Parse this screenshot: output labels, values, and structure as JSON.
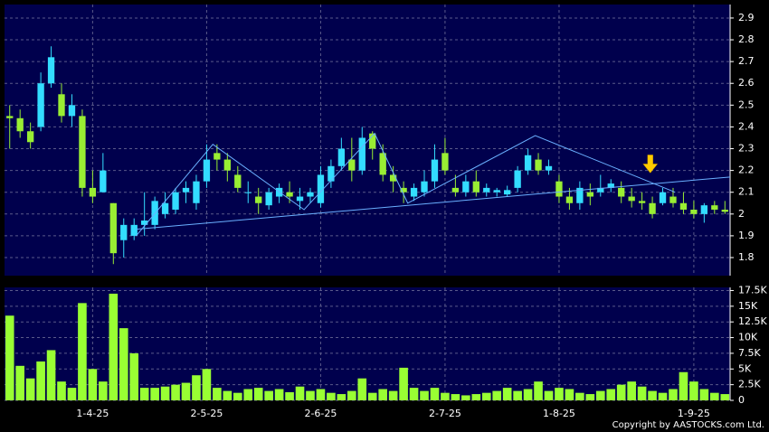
{
  "chart_data": [
    {
      "type": "candlestick",
      "up_color": "#33ddff",
      "down_color": "#99ee33",
      "background": "#00004d",
      "grid": true,
      "open": [
        2.45,
        2.44,
        2.38,
        2.4,
        2.6,
        2.55,
        2.45,
        2.45,
        2.12,
        2.1,
        2.05,
        1.88,
        1.9,
        1.95,
        1.95,
        2.0,
        2.02,
        2.1,
        2.05,
        2.15,
        2.28,
        2.25,
        2.18,
        2.1,
        2.08,
        2.04,
        2.08,
        2.1,
        2.06,
        2.08,
        2.05,
        2.15,
        2.22,
        2.25,
        2.2,
        2.37,
        2.28,
        2.18,
        2.12,
        2.08,
        2.1,
        2.15,
        2.28,
        2.12,
        2.1,
        2.15,
        2.1,
        2.1,
        2.09,
        2.12,
        2.2,
        2.25,
        2.2,
        2.15,
        2.08,
        2.05,
        2.1,
        2.1,
        2.12,
        2.12,
        2.08,
        2.06,
        2.05,
        2.05,
        2.08,
        2.05,
        2.02,
        2.0,
        2.04,
        2.02
      ],
      "high": [
        2.5,
        2.48,
        2.42,
        2.65,
        2.77,
        2.6,
        2.55,
        2.48,
        2.2,
        2.28,
        2.05,
        1.98,
        1.98,
        2.1,
        2.08,
        2.1,
        2.12,
        2.15,
        2.18,
        2.32,
        2.32,
        2.28,
        2.22,
        2.15,
        2.12,
        2.12,
        2.14,
        2.15,
        2.12,
        2.12,
        2.22,
        2.25,
        2.35,
        2.35,
        2.4,
        2.38,
        2.32,
        2.22,
        2.15,
        2.14,
        2.2,
        2.32,
        2.35,
        2.18,
        2.18,
        2.2,
        2.14,
        2.12,
        2.13,
        2.22,
        2.3,
        2.28,
        2.25,
        2.18,
        2.12,
        2.15,
        2.14,
        2.18,
        2.16,
        2.15,
        2.12,
        2.1,
        2.08,
        2.12,
        2.12,
        2.1,
        2.06,
        2.05,
        2.06,
        2.06
      ],
      "low": [
        2.3,
        2.35,
        2.3,
        2.38,
        2.58,
        2.42,
        2.4,
        2.08,
        2.05,
        2.1,
        1.77,
        1.8,
        1.88,
        1.9,
        1.93,
        1.98,
        2.0,
        2.05,
        2.02,
        2.12,
        2.2,
        2.15,
        2.1,
        2.05,
        2.0,
        2.02,
        2.05,
        2.05,
        2.02,
        2.05,
        2.03,
        2.12,
        2.2,
        2.15,
        2.18,
        2.25,
        2.15,
        2.1,
        2.05,
        2.06,
        2.08,
        2.12,
        2.18,
        2.08,
        2.08,
        2.08,
        2.08,
        2.08,
        2.08,
        2.1,
        2.18,
        2.18,
        2.18,
        2.05,
        2.02,
        2.02,
        2.04,
        2.08,
        2.1,
        2.05,
        2.03,
        2.02,
        1.98,
        2.04,
        2.03,
        2.0,
        1.98,
        1.96,
        2.0,
        2.0
      ],
      "close": [
        2.44,
        2.38,
        2.33,
        2.6,
        2.72,
        2.45,
        2.5,
        2.12,
        2.08,
        2.2,
        1.82,
        1.95,
        1.95,
        1.97,
        2.06,
        2.05,
        2.1,
        2.12,
        2.15,
        2.25,
        2.25,
        2.2,
        2.12,
        2.1,
        2.05,
        2.1,
        2.12,
        2.08,
        2.08,
        2.1,
        2.18,
        2.22,
        2.3,
        2.2,
        2.35,
        2.3,
        2.18,
        2.15,
        2.1,
        2.12,
        2.15,
        2.25,
        2.2,
        2.1,
        2.15,
        2.1,
        2.12,
        2.11,
        2.11,
        2.2,
        2.27,
        2.2,
        2.22,
        2.08,
        2.05,
        2.12,
        2.08,
        2.12,
        2.14,
        2.08,
        2.06,
        2.05,
        2.0,
        2.1,
        2.05,
        2.02,
        2.0,
        2.04,
        2.02,
        2.01
      ],
      "xlim": [
        -0.5,
        69.5
      ],
      "ylim": [
        1.717,
        2.962
      ],
      "yticks": [
        1.8,
        1.9,
        2,
        2.1,
        2.2,
        2.3,
        2.4,
        2.5,
        2.6,
        2.7,
        2.8,
        2.9
      ],
      "trend_lines": [
        {
          "color": "#6ab0ff",
          "x": [
            12.2,
            19.6,
            28.4,
            35.2,
            38.4,
            50.7,
            64.2
          ],
          "y": [
            1.9,
            2.32,
            2.02,
            2.37,
            2.05,
            2.36,
            2.1
          ]
        },
        {
          "color": "#6ab0ff",
          "x": [
            12.2,
            69.5
          ],
          "y": [
            1.93,
            2.17
          ]
        }
      ],
      "arrow": {
        "x": 61.8,
        "y": 2.18,
        "color": "#ffcc00"
      }
    },
    {
      "type": "bar",
      "color": "#99ff33",
      "background": "#00004d",
      "grid": true,
      "values": [
        13500,
        5500,
        3500,
        6200,
        8000,
        3000,
        2000,
        15500,
        5000,
        3000,
        17000,
        11500,
        7500,
        2000,
        2000,
        2200,
        2500,
        2800,
        4000,
        5000,
        2000,
        1500,
        1200,
        1800,
        2000,
        1500,
        1800,
        1300,
        2200,
        1500,
        1800,
        1200,
        1000,
        1500,
        3500,
        1200,
        1800,
        1500,
        5200,
        2000,
        1500,
        2000,
        1200,
        1000,
        800,
        1000,
        1200,
        1500,
        2000,
        1500,
        1800,
        3000,
        1500,
        2000,
        1800,
        1200,
        1000,
        1500,
        1800,
        2500,
        3000,
        2200,
        1500,
        1200,
        1800,
        4500,
        3000,
        1800,
        1200,
        1000
      ],
      "xlim": [
        -0.5,
        69.5
      ],
      "ylim": [
        0,
        18000
      ],
      "yticks": [
        {
          "value": 0,
          "label": "0"
        },
        {
          "value": 2500,
          "label": "2.5K"
        },
        {
          "value": 5000,
          "label": "5K"
        },
        {
          "value": 7500,
          "label": "7.5K"
        },
        {
          "value": 10000,
          "label": "10K"
        },
        {
          "value": 12500,
          "label": "12.5K"
        },
        {
          "value": 15000,
          "label": "15K"
        },
        {
          "value": 17500,
          "label": "17.5K"
        }
      ],
      "xticks": [
        {
          "value": 8,
          "label": "1-4-25"
        },
        {
          "value": 19,
          "label": "2-5-25"
        },
        {
          "value": 30,
          "label": "2-6-25"
        },
        {
          "value": 42,
          "label": "2-7-25"
        },
        {
          "value": 53,
          "label": "1-8-25"
        },
        {
          "value": 66,
          "label": "1-9-25"
        }
      ],
      "copyright": "Copyright by AASTOCKS.com Ltd."
    }
  ]
}
